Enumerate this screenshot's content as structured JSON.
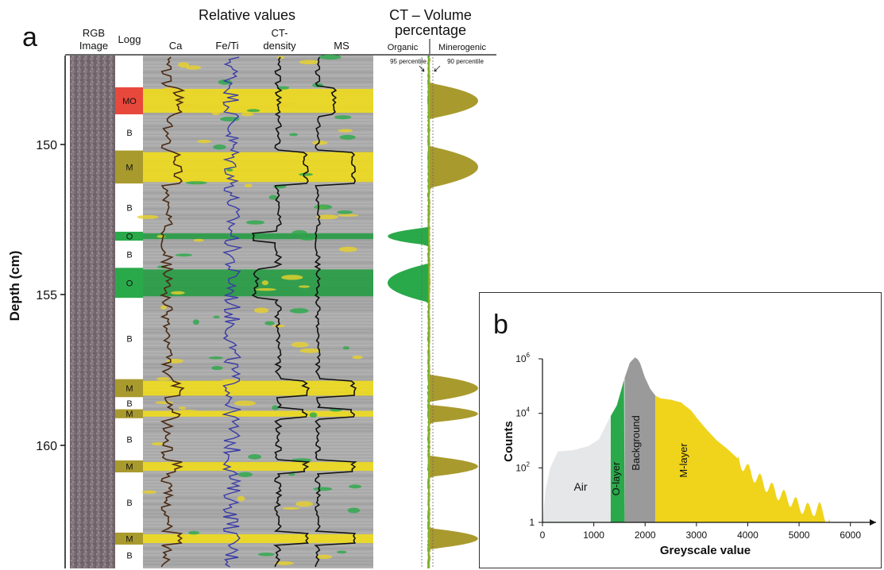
{
  "panel_a": {
    "label": "a",
    "relative_values_title": "Relative values",
    "ct_volume_title_line1": "CT – Volume",
    "ct_volume_title_line2": "percentage",
    "columns": {
      "rgb_line1": "RGB",
      "rgb_line2": "Image",
      "logg": "Logg",
      "ca": "Ca",
      "fe_ti": "Fe/Ti",
      "ct_line1": "CT-",
      "ct_line2": "density",
      "ms": "MS",
      "organic": "Organic",
      "minerogenic": "Minerogenic"
    },
    "percentile_labels": {
      "p95": "95 percentile",
      "p90": "90 percentile"
    },
    "depth_axis": {
      "label": "Depth (cm)",
      "ticks": [
        "150",
        "155",
        "160"
      ]
    },
    "logg_units": [
      {
        "label": "MO",
        "color": "#e8483c",
        "top": 148.1,
        "bottom": 149.0
      },
      {
        "label": "B",
        "color": "#ffffff",
        "top": 149.0,
        "bottom": 150.2
      },
      {
        "label": "M",
        "color": "#a99a2e",
        "top": 150.2,
        "bottom": 151.3
      },
      {
        "label": "B",
        "color": "#ffffff",
        "top": 151.3,
        "bottom": 152.9
      },
      {
        "label": "O",
        "color": "#2aa94a",
        "top": 152.9,
        "bottom": 153.2
      },
      {
        "label": "B",
        "color": "#ffffff",
        "top": 153.2,
        "bottom": 154.1
      },
      {
        "label": "O",
        "color": "#2aa94a",
        "top": 154.1,
        "bottom": 155.1
      },
      {
        "label": "B",
        "color": "#ffffff",
        "top": 155.1,
        "bottom": 157.8
      },
      {
        "label": "M",
        "color": "#a99a2e",
        "top": 157.8,
        "bottom": 158.4
      },
      {
        "label": "B",
        "color": "#ffffff",
        "top": 158.4,
        "bottom": 158.8
      },
      {
        "label": "M",
        "color": "#a99a2e",
        "top": 158.8,
        "bottom": 159.1
      },
      {
        "label": "B",
        "color": "#ffffff",
        "top": 159.1,
        "bottom": 160.5
      },
      {
        "label": "M",
        "color": "#a99a2e",
        "top": 160.5,
        "bottom": 160.9
      },
      {
        "label": "B",
        "color": "#ffffff",
        "top": 160.9,
        "bottom": 162.9
      },
      {
        "label": "M",
        "color": "#a99a2e",
        "top": 162.9,
        "bottom": 163.3
      },
      {
        "label": "B",
        "color": "#ffffff",
        "top": 163.3,
        "bottom": 164.0
      }
    ]
  },
  "panel_b": {
    "label": "b",
    "chart_data": {
      "type": "area",
      "xlabel": "Greyscale value",
      "ylabel": "Counts",
      "x_ticks": [
        "0",
        "1000",
        "2000",
        "3000",
        "4000",
        "5000",
        "6000"
      ],
      "y_ticks": [
        {
          "base": "1",
          "exp": ""
        },
        {
          "base": "10",
          "exp": "2"
        },
        {
          "base": "10",
          "exp": "4"
        },
        {
          "base": "10",
          "exp": "6"
        }
      ],
      "xlim": [
        0,
        6500
      ],
      "ylim_log10": [
        0,
        6
      ],
      "y_scale": "log",
      "regions": [
        {
          "name": "Air",
          "color": "#e6e7e9",
          "from": 0,
          "to": 1330
        },
        {
          "name": "O-layer",
          "color": "#2aa94a",
          "from": 1330,
          "to": 1600
        },
        {
          "name": "Background",
          "color": "#9a9a9a",
          "from": 1600,
          "to": 2200
        },
        {
          "name": "M-layer",
          "color": "#f0d31b",
          "from": 2200,
          "to": 5600
        }
      ],
      "histogram": {
        "x": [
          0,
          60,
          150,
          300,
          600,
          900,
          1100,
          1300,
          1450,
          1600,
          1700,
          1800,
          1850,
          1900,
          2000,
          2100,
          2200,
          2300,
          2500,
          2700,
          2900,
          3000,
          3200,
          3400,
          3600,
          3800,
          4000,
          4200,
          4400,
          4600,
          4800,
          5000,
          5200,
          5400,
          5500,
          5600
        ],
        "log10_counts": [
          0,
          1.2,
          2.0,
          2.6,
          2.65,
          2.8,
          3.05,
          3.8,
          4.3,
          5.3,
          5.85,
          6.05,
          6.0,
          5.85,
          5.3,
          4.9,
          4.65,
          4.55,
          4.5,
          4.4,
          4.1,
          3.85,
          3.4,
          3.0,
          2.7,
          2.35,
          1.9,
          1.6,
          1.3,
          1.05,
          0.85,
          0.6,
          0.45,
          0.5,
          0.3,
          0
        ]
      }
    }
  }
}
